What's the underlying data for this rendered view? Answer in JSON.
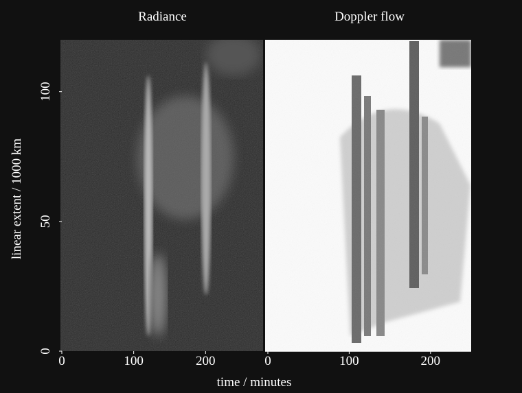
{
  "chart_data": [
    {
      "type": "image",
      "title": "Radiance",
      "xlabel": "time / minutes",
      "ylabel": "linear extent / 1000 km",
      "xlim": [
        0,
        280
      ],
      "xticks": [
        0,
        100,
        200
      ],
      "ylim": [
        0,
        120
      ],
      "yticks": [
        0,
        50,
        100
      ]
    },
    {
      "type": "image",
      "title": "Doppler flow",
      "xlim": [
        0,
        250
      ],
      "xticks": [
        0,
        100,
        200
      ],
      "ylim": [
        0,
        120
      ],
      "yticks": []
    }
  ]
}
